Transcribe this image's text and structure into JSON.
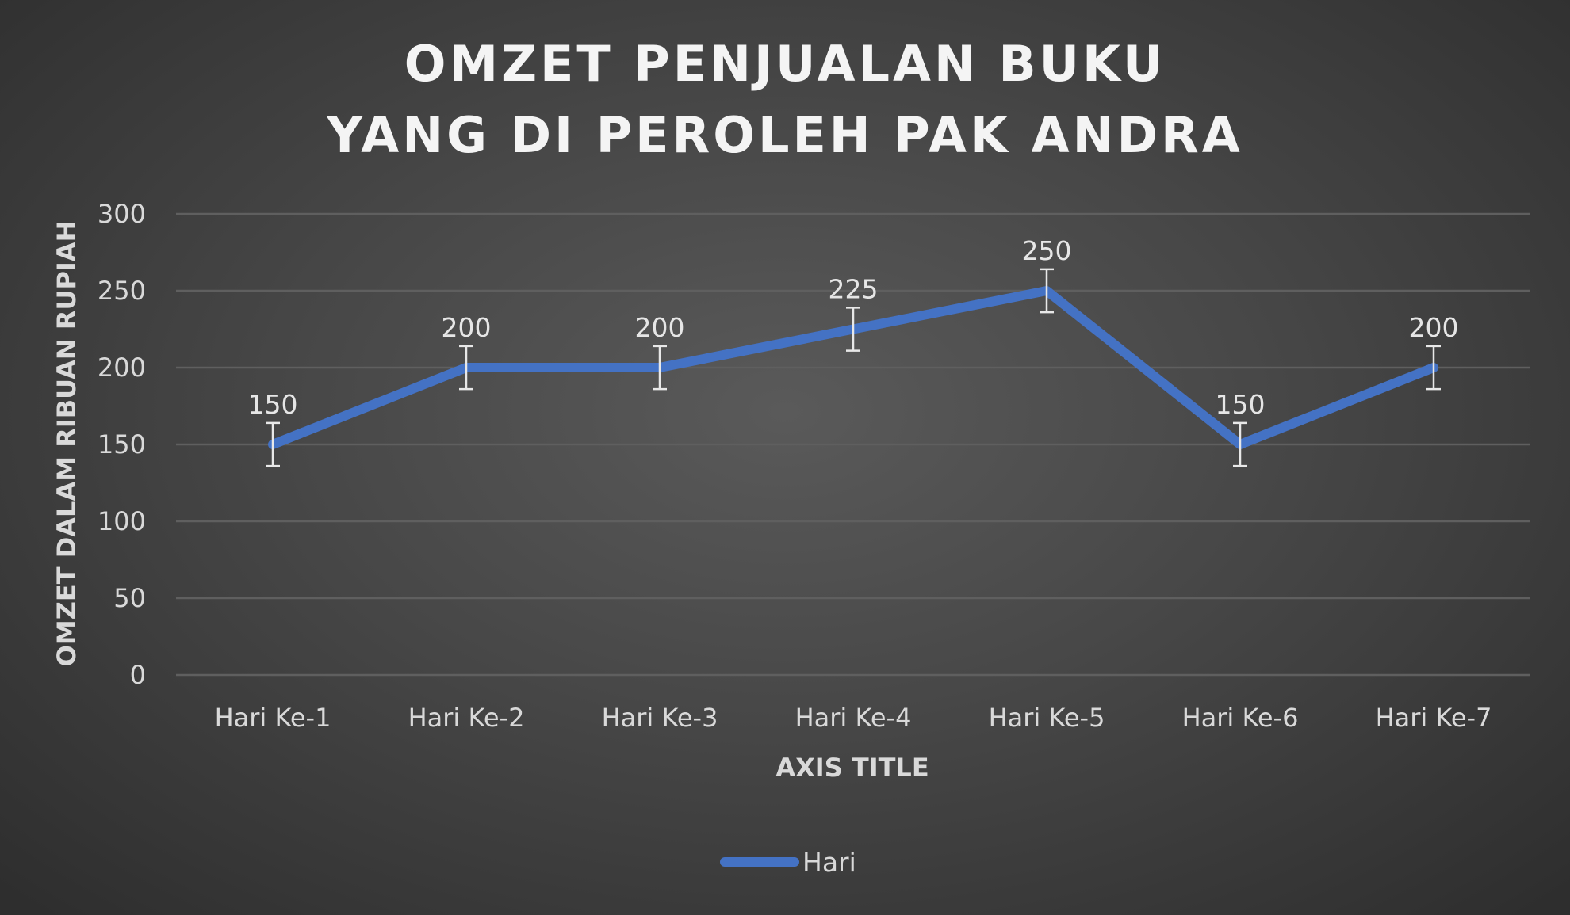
{
  "chart_data": {
    "type": "line",
    "title_lines": [
      "OMZET PENJUALAN BUKU",
      "YANG DI PEROLEH PAK ANDRA"
    ],
    "xlabel": "AXIS TITLE",
    "ylabel": "OMZET DALAM RIBUAN RUPIAH",
    "categories": [
      "Hari Ke-1",
      "Hari Ke-2",
      "Hari Ke-3",
      "Hari Ke-4",
      "Hari Ke-5",
      "Hari Ke-6",
      "Hari Ke-7"
    ],
    "series": [
      {
        "name": "Hari",
        "values": [
          150,
          200,
          200,
          225,
          250,
          150,
          200
        ],
        "color": "#4472c4"
      }
    ],
    "y_ticks": [
      0,
      50,
      100,
      150,
      200,
      250,
      300
    ],
    "ylim": [
      0,
      300
    ],
    "error_bar_amount": 14,
    "data_labels": true,
    "grid": true,
    "legend_position": "bottom",
    "background": "#464646",
    "grid_color": "#5f5f5f",
    "text_color": "#d9d9d9"
  }
}
